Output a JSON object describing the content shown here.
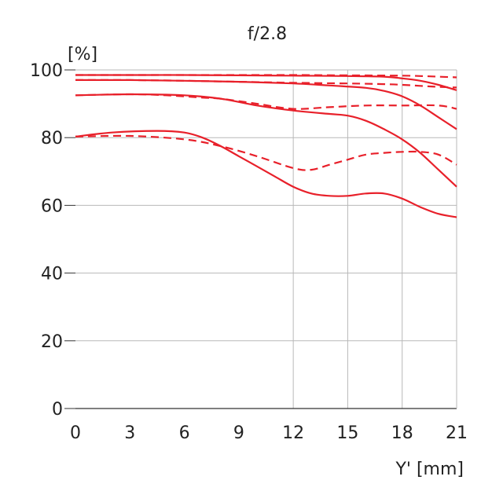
{
  "chart_data": {
    "type": "line",
    "title": "f/2.8",
    "ylabel": "[%]",
    "xlabel": "Y' [mm]",
    "xlim": [
      0,
      21
    ],
    "ylim": [
      0,
      100
    ],
    "x_ticks": [
      0,
      3,
      6,
      9,
      12,
      15,
      18,
      21
    ],
    "y_ticks": [
      0,
      20,
      40,
      60,
      80,
      100
    ],
    "grid": "vertical",
    "line_color": "#e8202a",
    "series": [
      {
        "style": "solid",
        "x": [
          0,
          3,
          6,
          9,
          12,
          15,
          17,
          18,
          19,
          20,
          21
        ],
        "y": [
          98.5,
          98.5,
          98.5,
          98.4,
          98.3,
          98.2,
          98.0,
          97.5,
          96.8,
          95.6,
          94.0
        ]
      },
      {
        "style": "dashed",
        "x": [
          0,
          3,
          6,
          9,
          12,
          15,
          18,
          19,
          20,
          21
        ],
        "y": [
          98.5,
          98.5,
          98.5,
          98.5,
          98.5,
          98.4,
          98.3,
          98.2,
          98.0,
          97.8
        ]
      },
      {
        "style": "solid",
        "x": [
          0,
          3,
          6,
          9,
          12,
          14,
          16,
          17,
          18,
          19,
          20,
          21
        ],
        "y": [
          97.0,
          97.0,
          96.8,
          96.5,
          96.0,
          95.4,
          94.7,
          93.8,
          92.2,
          89.5,
          86.0,
          82.5
        ]
      },
      {
        "style": "dashed",
        "x": [
          0,
          3,
          6,
          9,
          12,
          15,
          17,
          18,
          19,
          20,
          21
        ],
        "y": [
          97.0,
          97.0,
          96.8,
          96.5,
          96.2,
          96.0,
          95.8,
          95.6,
          95.3,
          95.0,
          94.8
        ]
      },
      {
        "style": "solid",
        "x": [
          0,
          3,
          6,
          8,
          10,
          12,
          14,
          15,
          16,
          17,
          18,
          19,
          20,
          21
        ],
        "y": [
          92.5,
          92.8,
          92.5,
          91.5,
          89.5,
          88.0,
          87.0,
          86.5,
          85.0,
          82.5,
          79.5,
          75.5,
          70.5,
          65.5
        ]
      },
      {
        "style": "dashed",
        "x": [
          0,
          3,
          5,
          7,
          8,
          10,
          12,
          14,
          16,
          18,
          20,
          21
        ],
        "y": [
          92.5,
          92.8,
          92.5,
          91.8,
          91.5,
          90.0,
          88.5,
          89.0,
          89.5,
          89.5,
          89.5,
          88.5
        ]
      },
      {
        "style": "solid",
        "x": [
          0,
          2,
          4.5,
          6,
          7,
          8,
          9,
          10,
          11,
          12,
          13,
          14,
          15,
          16,
          17,
          18,
          19,
          20,
          21
        ],
        "y": [
          80.3,
          81.5,
          82.0,
          81.5,
          80.0,
          77.5,
          74.5,
          71.5,
          68.5,
          65.5,
          63.5,
          62.8,
          62.8,
          63.5,
          63.5,
          62.0,
          59.5,
          57.5,
          56.5
        ]
      },
      {
        "style": "dashed",
        "x": [
          0,
          3,
          6,
          8,
          10,
          12,
          13,
          14,
          15,
          16,
          17,
          18,
          19,
          20,
          21
        ],
        "y": [
          80.3,
          80.5,
          79.5,
          77.5,
          74.5,
          71.0,
          70.5,
          72.0,
          73.5,
          75.0,
          75.5,
          75.8,
          75.8,
          75.0,
          72.0
        ]
      }
    ]
  }
}
